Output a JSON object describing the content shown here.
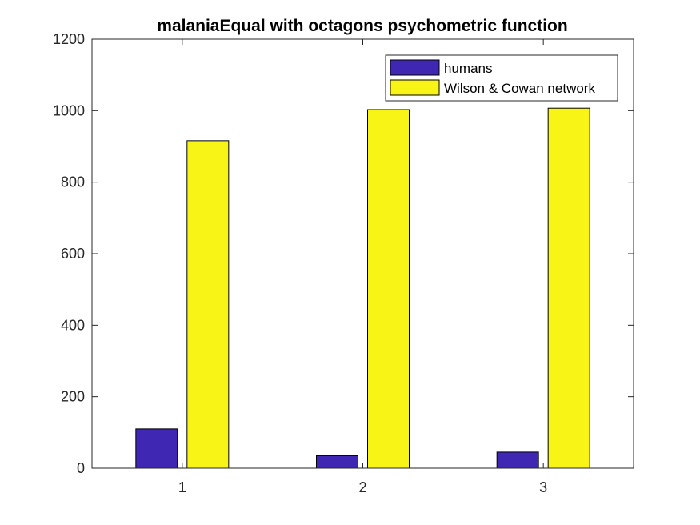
{
  "chart_data": {
    "type": "bar",
    "title": "malaniaEqual with octagons psychometric function",
    "xlabel": "",
    "ylabel": "",
    "categories": [
      "1",
      "2",
      "3"
    ],
    "ylim": [
      0,
      1200
    ],
    "yticks": [
      0,
      200,
      400,
      600,
      800,
      1000,
      1200
    ],
    "grid": false,
    "legend_position": "top-right",
    "series": [
      {
        "name": "humans",
        "values": [
          110,
          35,
          45
        ],
        "color": "#3f27b3"
      },
      {
        "name": "Wilson & Cowan network",
        "values": [
          916,
          1003,
          1007
        ],
        "color": "#f8f516"
      }
    ]
  }
}
